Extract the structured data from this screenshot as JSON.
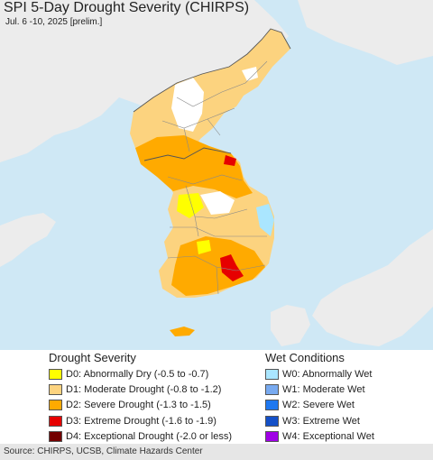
{
  "title": "SPI 5-Day Drought Severity (CHIRPS)",
  "subtitle": "Jul. 6 -10, 2025 [prelim.]",
  "colors": {
    "sea": "#cfe8f5",
    "other_land": "#ececec",
    "none": "#ffffff",
    "D0": "#ffff00",
    "D1": "#fcd37f",
    "D2": "#ffaa00",
    "D3": "#e60000",
    "D4": "#730000",
    "W0": "#aae6ff",
    "W1": "#78aaf0",
    "W2": "#1e78f0",
    "W3": "#1450c8",
    "W4": "#a000e6"
  },
  "legend": {
    "drought_title": "Drought Severity",
    "drought_items": [
      {
        "code": "D0",
        "label": "D0: Abnormally Dry (-0.5 to -0.7)"
      },
      {
        "code": "D1",
        "label": "D1: Moderate Drought (-0.8 to -1.2)"
      },
      {
        "code": "D2",
        "label": "D2: Severe Drought (-1.3 to -1.5)"
      },
      {
        "code": "D3",
        "label": "D3: Extreme Drought (-1.6 to -1.9)"
      },
      {
        "code": "D4",
        "label": "D4: Exceptional Drought (-2.0 or less)"
      }
    ],
    "wet_title": "Wet Conditions",
    "wet_items": [
      {
        "code": "W0",
        "label": "W0: Abnormally Wet"
      },
      {
        "code": "W1",
        "label": "W1: Moderate Wet"
      },
      {
        "code": "W2",
        "label": "W2: Severe Wet"
      },
      {
        "code": "W3",
        "label": "W3: Extreme Wet"
      },
      {
        "code": "W4",
        "label": "W4: Exceptional Wet"
      }
    ]
  },
  "source": "Source: CHIRPS, UCSB, Climate Hazards Center"
}
